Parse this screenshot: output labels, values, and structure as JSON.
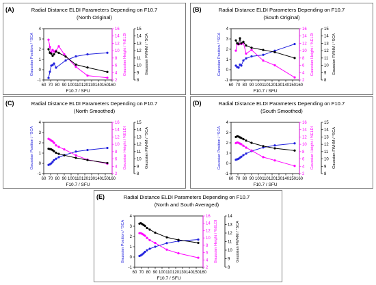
{
  "chart_data": [
    {
      "type": "line",
      "panel_label": "(A)",
      "title": "Radial Distance ELDI Parameters Depending on F10.7",
      "subtitle": "(North Original)",
      "xlabel": "F10.7 / SFU",
      "ylabel_left": "Gaussian Position / °SCA",
      "ylabel_right_inner": "Gaussian Height / %ELDI",
      "ylabel_right_outer": "Gaussian FWHM / °SCA",
      "xlim": [
        60,
        160
      ],
      "xticks": [
        60,
        70,
        80,
        90,
        100,
        110,
        120,
        130,
        140,
        150,
        160
      ],
      "ylim_left": [
        -1,
        4
      ],
      "yticks_left": [
        -1,
        0,
        1,
        2,
        3,
        4
      ],
      "ylim_height": [
        2,
        16
      ],
      "yticks_height": [
        2,
        4,
        6,
        8,
        10,
        12,
        14,
        16
      ],
      "ylim_fwhm": [
        8,
        15
      ],
      "yticks_fwhm": [
        8,
        9,
        10,
        11,
        12,
        13,
        14,
        15
      ],
      "series": [
        {
          "color": "#2222dd",
          "axis": "left",
          "x": [
            67,
            69,
            71,
            73,
            75,
            78,
            92,
            107,
            124,
            153
          ],
          "y": [
            -0.8,
            -0.2,
            0.4,
            0.45,
            0.6,
            0.2,
            0.9,
            1.3,
            1.5,
            1.65
          ]
        },
        {
          "color": "#ff00ff",
          "axis": "height",
          "x": [
            67,
            69,
            71,
            73,
            75,
            78,
            82,
            90,
            107,
            124,
            153
          ],
          "y": [
            13.0,
            11.0,
            9.6,
            10.2,
            9.8,
            10.0,
            11.2,
            9.0,
            5.6,
            3.2,
            2.6
          ]
        },
        {
          "color": "#000000",
          "axis": "fwhm",
          "x": [
            67,
            69,
            71,
            73,
            75,
            78,
            82,
            92,
            107,
            124,
            153
          ],
          "y": [
            12.2,
            11.7,
            11.6,
            11.3,
            11.5,
            11.9,
            11.7,
            11.2,
            10.1,
            9.7,
            9.1
          ]
        }
      ]
    },
    {
      "type": "line",
      "panel_label": "(B)",
      "title": "Radial Distance ELDI Parameters Depending on F10.7",
      "subtitle": "(South Original)",
      "xlabel": "F10.7 / SFU",
      "ylabel_left": "Gaussian Position / °SCA",
      "ylabel_right_inner": "Gaussian Height / %ELDI",
      "ylabel_right_outer": "Gaussian FWHM / °SCA",
      "xlim": [
        60,
        160
      ],
      "xticks": [
        60,
        70,
        80,
        90,
        100,
        110,
        120,
        130,
        140,
        150,
        160
      ],
      "ylim_left": [
        -1,
        4
      ],
      "yticks_left": [
        -1,
        0,
        1,
        2,
        3,
        4
      ],
      "ylim_height": [
        2,
        16
      ],
      "yticks_height": [
        2,
        4,
        6,
        8,
        10,
        12,
        14,
        16
      ],
      "ylim_fwhm": [
        8,
        15
      ],
      "yticks_fwhm": [
        8,
        9,
        10,
        11,
        12,
        13,
        14,
        15
      ],
      "series": [
        {
          "color": "#2222dd",
          "axis": "left",
          "x": [
            67,
            69,
            71,
            73,
            75,
            78,
            82,
            90,
            107,
            124,
            153
          ],
          "y": [
            0.4,
            0.25,
            0.2,
            0.5,
            0.4,
            0.9,
            1.1,
            1.3,
            1.45,
            1.85,
            2.5
          ]
        },
        {
          "color": "#ff00ff",
          "axis": "height",
          "x": [
            67,
            69,
            71,
            73,
            75,
            78,
            82,
            90,
            107,
            124,
            153
          ],
          "y": [
            10.0,
            11.8,
            11.7,
            11.9,
            11.8,
            12.2,
            9.2,
            10.2,
            7.3,
            6.0,
            2.7
          ]
        },
        {
          "color": "#000000",
          "axis": "fwhm",
          "x": [
            67,
            69,
            71,
            73,
            75,
            78,
            82,
            90,
            107,
            124,
            153
          ],
          "y": [
            13.4,
            13.0,
            12.9,
            13.7,
            13.0,
            13.2,
            12.7,
            12.4,
            12.1,
            11.8,
            11.0
          ]
        }
      ]
    },
    {
      "type": "line",
      "panel_label": "(C)",
      "title": "Radial Distance ELDI Parameters Depending on F10.7",
      "subtitle": "(North Smoothed)",
      "xlabel": "F10.7 / SFU",
      "ylabel_left": "Gaussian Position / °SCA",
      "ylabel_right_inner": "Gaussian Height / %ELDI",
      "ylabel_right_outer": "Gaussian FWHM / °SCA",
      "xlim": [
        60,
        160
      ],
      "xticks": [
        60,
        70,
        80,
        90,
        100,
        110,
        120,
        130,
        140,
        150,
        160
      ],
      "ylim_left": [
        -1,
        4
      ],
      "yticks_left": [
        -1,
        0,
        1,
        2,
        3,
        4
      ],
      "ylim_height": [
        2,
        16
      ],
      "yticks_height": [
        2,
        4,
        6,
        8,
        10,
        12,
        14,
        16
      ],
      "ylim_fwhm": [
        8,
        15
      ],
      "yticks_fwhm": [
        8,
        9,
        10,
        11,
        12,
        13,
        14,
        15
      ],
      "series": [
        {
          "color": "#2222dd",
          "axis": "left",
          "x": [
            67,
            69,
            71,
            73,
            75,
            78,
            82,
            90,
            107,
            124,
            153
          ],
          "y": [
            -0.15,
            -0.1,
            0.0,
            0.15,
            0.3,
            0.45,
            0.6,
            0.8,
            1.15,
            1.3,
            1.5
          ]
        },
        {
          "color": "#ff00ff",
          "axis": "height",
          "x": [
            67,
            69,
            71,
            73,
            75,
            78,
            82,
            90,
            107,
            124,
            153
          ],
          "y": [
            11.5,
            11.3,
            11.0,
            10.8,
            10.4,
            9.7,
            9.3,
            8.6,
            7.0,
            5.8,
            4.7
          ]
        },
        {
          "color": "#000000",
          "axis": "fwhm",
          "x": [
            67,
            69,
            71,
            73,
            75,
            78,
            82,
            90,
            107,
            124,
            153
          ],
          "y": [
            11.4,
            11.35,
            11.3,
            11.2,
            11.05,
            10.85,
            10.7,
            10.5,
            10.15,
            9.85,
            9.45
          ]
        }
      ]
    },
    {
      "type": "line",
      "panel_label": "(D)",
      "title": "Radial Distance ELDI Parameters Depending on F10.7",
      "subtitle": "(South Smoothed)",
      "xlabel": "F10.7 / SFU",
      "ylabel_left": "Gaussian Position / °SCA",
      "ylabel_right_inner": "Gaussian Height / %ELDI",
      "ylabel_right_outer": "Gaussian FWHM / °SCA",
      "xlim": [
        60,
        160
      ],
      "xticks": [
        60,
        70,
        80,
        90,
        100,
        110,
        120,
        130,
        140,
        150,
        160
      ],
      "ylim_left": [
        -1,
        4
      ],
      "yticks_left": [
        -1,
        0,
        1,
        2,
        3,
        4
      ],
      "ylim_height": [
        2,
        16
      ],
      "yticks_height": [
        2,
        4,
        6,
        8,
        10,
        12,
        14,
        16
      ],
      "ylim_fwhm": [
        8,
        15
      ],
      "yticks_fwhm": [
        8,
        9,
        10,
        11,
        12,
        13,
        14,
        15
      ],
      "series": [
        {
          "color": "#2222dd",
          "axis": "left",
          "x": [
            67,
            69,
            71,
            73,
            75,
            78,
            82,
            90,
            107,
            124,
            153
          ],
          "y": [
            0.35,
            0.4,
            0.45,
            0.55,
            0.65,
            0.8,
            0.95,
            1.2,
            1.55,
            1.75,
            1.95
          ]
        },
        {
          "color": "#ff00ff",
          "axis": "height",
          "x": [
            67,
            69,
            71,
            73,
            75,
            78,
            82,
            90,
            107,
            124,
            153
          ],
          "y": [
            10.3,
            10.5,
            10.4,
            10.2,
            10.0,
            9.6,
            9.1,
            8.3,
            6.5,
            5.6,
            4.1
          ]
        },
        {
          "color": "#000000",
          "axis": "fwhm",
          "x": [
            67,
            69,
            71,
            73,
            75,
            78,
            82,
            90,
            107,
            124,
            153
          ],
          "y": [
            13.0,
            13.1,
            13.05,
            12.95,
            12.85,
            12.7,
            12.5,
            12.2,
            11.75,
            11.45,
            11.15
          ]
        }
      ]
    },
    {
      "type": "line",
      "panel_label": "(E)",
      "title": "Radial Distance ELDI Parameters Depending on F10.7",
      "subtitle": "(North and South Averaged)",
      "xlabel": "F10.7 / SFU",
      "ylabel_left": "Gaussian Position / °SCA",
      "ylabel_right_inner": "Gaussian Height / %ELDI",
      "ylabel_right_outer": "Gaussian FWHM / °SCA",
      "xlim": [
        60,
        160
      ],
      "xticks": [
        60,
        70,
        80,
        90,
        100,
        110,
        120,
        130,
        140,
        150,
        160
      ],
      "ylim_left": [
        -1,
        4
      ],
      "yticks_left": [
        -1,
        0,
        1,
        2,
        3,
        4
      ],
      "ylim_height": [
        2,
        16
      ],
      "yticks_height": [
        2,
        4,
        6,
        8,
        10,
        12,
        14,
        16
      ],
      "ylim_fwhm": [
        8,
        14
      ],
      "yticks_fwhm": [
        8,
        9,
        10,
        11,
        12,
        13,
        14
      ],
      "series": [
        {
          "color": "#2222dd",
          "axis": "left",
          "x": [
            67,
            69,
            71,
            73,
            75,
            78,
            82,
            90,
            107,
            124,
            153
          ],
          "y": [
            0.1,
            0.15,
            0.25,
            0.35,
            0.5,
            0.65,
            0.8,
            1.0,
            1.35,
            1.55,
            1.7
          ]
        },
        {
          "color": "#ff00ff",
          "axis": "height",
          "x": [
            67,
            69,
            71,
            73,
            75,
            78,
            82,
            90,
            107,
            124,
            153
          ],
          "y": [
            11.3,
            11.3,
            11.1,
            10.9,
            10.6,
            10.0,
            9.4,
            8.6,
            6.8,
            5.8,
            4.6
          ]
        },
        {
          "color": "#000000",
          "axis": "fwhm",
          "x": [
            67,
            69,
            71,
            73,
            75,
            78,
            82,
            90,
            107,
            124,
            153
          ],
          "y": [
            13.1,
            13.15,
            13.05,
            12.95,
            12.85,
            12.6,
            12.4,
            12.05,
            11.5,
            11.2,
            10.85
          ]
        }
      ]
    }
  ]
}
